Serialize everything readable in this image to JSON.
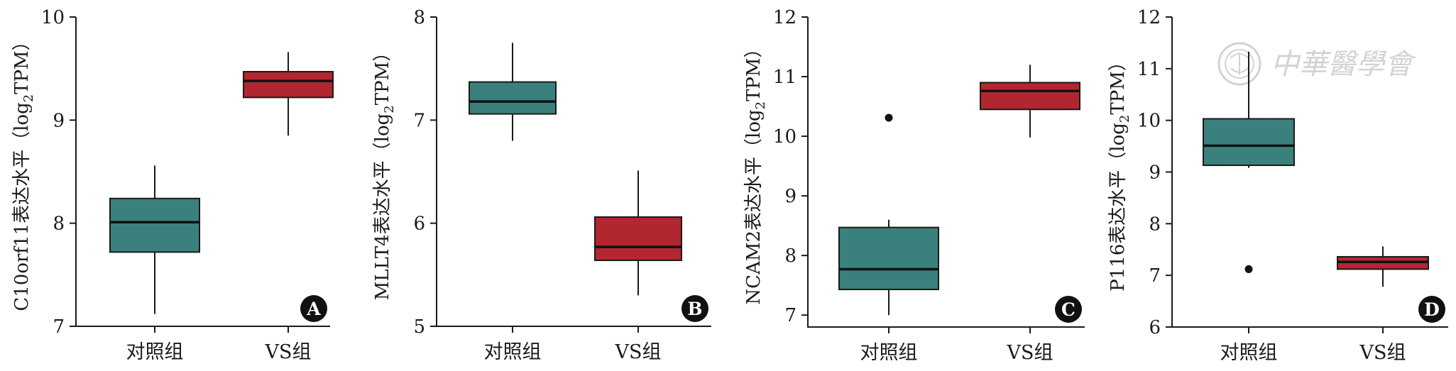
{
  "watermark": {
    "text": "中華醫學會"
  },
  "colors": {
    "control": "#3a817d",
    "vs": "#b2262f",
    "axis": "#1a1a1a",
    "watermark": "#d3d3d3"
  },
  "chart_data": [
    {
      "type": "box",
      "panel": "A",
      "ylabel": {
        "main": "C10orf11表达水平（log",
        "sub": "2",
        "tail": "TPM）"
      },
      "categories": [
        "对照组",
        "VS组"
      ],
      "ylim": [
        7,
        10
      ],
      "yticks": [
        7,
        8,
        9,
        10
      ],
      "ytick_labels": [
        "7",
        "8",
        "9",
        "10"
      ],
      "boxes": [
        {
          "name": "对照组",
          "min": 7.12,
          "q1": 7.72,
          "median": 8.01,
          "q3": 8.24,
          "max": 8.56,
          "outliers": []
        },
        {
          "name": "VS组",
          "min": 8.85,
          "q1": 9.22,
          "median": 9.38,
          "q3": 9.47,
          "max": 9.66,
          "outliers": []
        }
      ]
    },
    {
      "type": "box",
      "panel": "B",
      "ylabel": {
        "main": "MLLT4表达水平（log",
        "sub": "2",
        "tail": "TPM）"
      },
      "categories": [
        "对照组",
        "VS组"
      ],
      "ylim": [
        5,
        8
      ],
      "yticks": [
        5,
        6,
        7,
        8
      ],
      "ytick_labels": [
        "5",
        "6",
        "7",
        "8"
      ],
      "boxes": [
        {
          "name": "对照组",
          "min": 6.8,
          "q1": 7.06,
          "median": 7.18,
          "q3": 7.37,
          "max": 7.75,
          "outliers": []
        },
        {
          "name": "VS组",
          "min": 5.3,
          "q1": 5.64,
          "median": 5.77,
          "q3": 6.06,
          "max": 6.51,
          "outliers": []
        }
      ]
    },
    {
      "type": "box",
      "panel": "C",
      "ylabel": {
        "main": "NCAM2表达水平（log",
        "sub": "2",
        "tail": "TPM）"
      },
      "categories": [
        "对照组",
        "VS组"
      ],
      "ylim": [
        6.8,
        12
      ],
      "yticks": [
        7,
        8,
        9,
        10,
        11,
        12
      ],
      "ytick_labels": [
        "7",
        "8",
        "9",
        "10",
        "11",
        "12"
      ],
      "boxes": [
        {
          "name": "对照组",
          "min": 7.0,
          "q1": 7.43,
          "median": 7.77,
          "q3": 8.47,
          "max": 8.6,
          "outliers": [
            10.31
          ]
        },
        {
          "name": "VS组",
          "min": 9.98,
          "q1": 10.45,
          "median": 10.76,
          "q3": 10.9,
          "max": 11.2,
          "outliers": []
        }
      ]
    },
    {
      "type": "box",
      "panel": "D",
      "ylabel": {
        "main": "P116表达水平（log",
        "sub": "2",
        "tail": "TPM）"
      },
      "categories": [
        "对照组",
        "VS组"
      ],
      "ylim": [
        6,
        12
      ],
      "yticks": [
        6,
        7,
        8,
        9,
        10,
        11,
        12
      ],
      "ytick_labels": [
        "6",
        "7",
        "8",
        "9",
        "10",
        "11",
        "12"
      ],
      "boxes": [
        {
          "name": "对照组",
          "min": 9.08,
          "q1": 9.13,
          "median": 9.51,
          "q3": 10.03,
          "max": 11.33,
          "outliers": [
            7.12
          ]
        },
        {
          "name": "VS组",
          "min": 6.78,
          "q1": 7.12,
          "median": 7.26,
          "q3": 7.36,
          "max": 7.56,
          "outliers": []
        }
      ]
    }
  ]
}
